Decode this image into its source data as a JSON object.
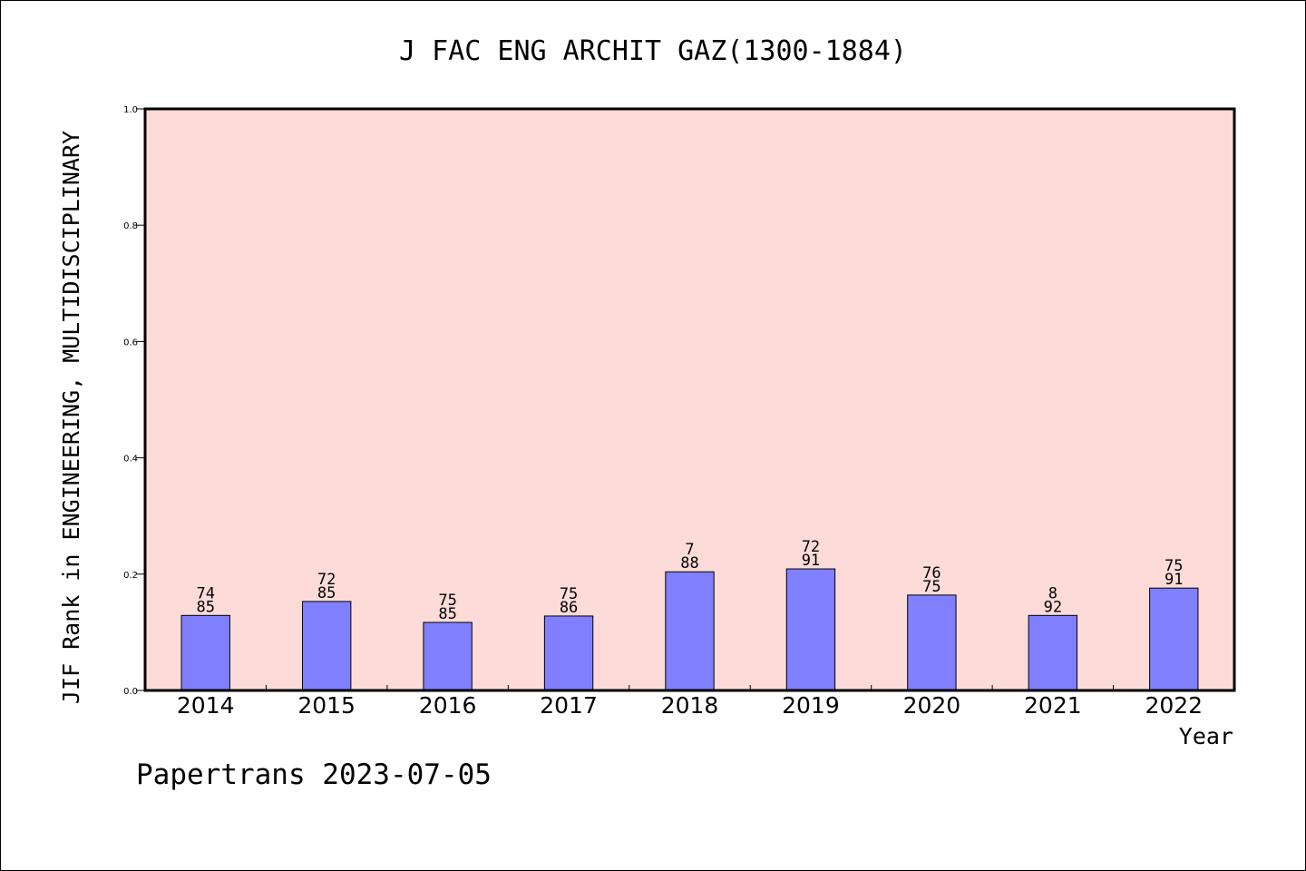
{
  "chart_data": {
    "type": "bar",
    "title": "J FAC ENG ARCHIT GAZ(1300-1884)",
    "xlabel": "Year",
    "ylabel": "JIF Rank in ENGINEERING, MULTIDISCIPLINARY",
    "categories": [
      "2014",
      "2015",
      "2016",
      "2017",
      "2018",
      "2019",
      "2020",
      "2021",
      "2022"
    ],
    "values": [
      0.129,
      0.153,
      0.117,
      0.128,
      0.204,
      0.209,
      0.164,
      0.129,
      0.176
    ],
    "labels_top": [
      "74",
      "72",
      "75",
      "75",
      "7",
      "72",
      "76",
      "8",
      "75"
    ],
    "labels_bottom": [
      "85",
      "85",
      "85",
      "86",
      "88",
      "91",
      "75",
      "92",
      "91"
    ],
    "ylim": [
      0,
      1.0
    ],
    "yticks": [
      "0.0",
      "0.2",
      "0.4",
      "0.6",
      "0.8",
      "1.0"
    ],
    "grid": false,
    "colors": {
      "bar": "#8080ff",
      "plot_bg": "#fddbd8",
      "axis": "#000000"
    }
  },
  "footer": "Papertrans 2023-07-05"
}
